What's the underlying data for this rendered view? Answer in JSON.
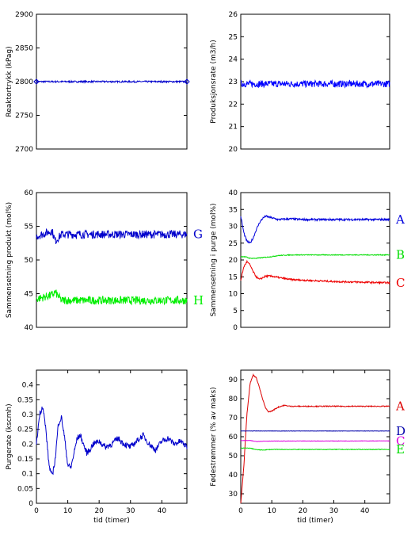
{
  "chart_data": [
    {
      "type": "line",
      "ylabel": "Reaktortrykk (kPag)",
      "xlabel": "",
      "xlim": [
        0,
        48
      ],
      "ylim": [
        2700,
        2900
      ],
      "yticks": [
        2700,
        2750,
        2800,
        2850,
        2900
      ],
      "xticks": [],
      "series": [
        {
          "label": "",
          "color": "#0000cc",
          "base": 2800,
          "noise": 1.2,
          "marker": "diamond",
          "x": [
            0,
            48
          ],
          "values": [
            2800,
            2800
          ]
        }
      ]
    },
    {
      "type": "line",
      "ylabel": "Produksjonsrate (m3/h)",
      "xlabel": "",
      "xlim": [
        0,
        48
      ],
      "ylim": [
        20,
        26
      ],
      "yticks": [
        20,
        21,
        22,
        23,
        24,
        25,
        26
      ],
      "xticks": [],
      "series": [
        {
          "label": "",
          "color": "#0000ff",
          "base": 22.9,
          "noise": 0.15,
          "x": [
            0,
            48
          ],
          "values": [
            22.9,
            22.9
          ]
        }
      ]
    },
    {
      "type": "line",
      "ylabel": "Sammensetning produkt (mol%)",
      "xlabel": "",
      "xlim": [
        0,
        48
      ],
      "ylim": [
        40,
        60
      ],
      "yticks": [
        40,
        45,
        50,
        55,
        60
      ],
      "xticks": [],
      "series": [
        {
          "label": "G",
          "color": "#0000cc",
          "base": 53.8,
          "noise": 0.6,
          "x": [
            0,
            5,
            6,
            8,
            48
          ],
          "values": [
            53.5,
            54.3,
            52.8,
            53.8,
            53.8
          ]
        },
        {
          "label": "H",
          "color": "#00ee00",
          "base": 44.0,
          "noise": 0.6,
          "x": [
            0,
            5,
            6,
            8,
            48
          ],
          "values": [
            44.2,
            44.8,
            45.2,
            44.0,
            44.0
          ]
        }
      ]
    },
    {
      "type": "line",
      "ylabel": "Sammensetning i purge (mol%)",
      "xlabel": "",
      "xlim": [
        0,
        48
      ],
      "ylim": [
        0,
        40
      ],
      "yticks": [
        0,
        5,
        10,
        15,
        20,
        25,
        30,
        35,
        40
      ],
      "xticks": [],
      "series": [
        {
          "label": "A",
          "color": "#0000dd",
          "base": 0,
          "noise": 0.3,
          "x": [
            0,
            1,
            2,
            3,
            4,
            5,
            6,
            7,
            8,
            10,
            12,
            16,
            20,
            48
          ],
          "values": [
            33,
            28,
            25.5,
            25,
            26.5,
            29,
            31,
            32.3,
            33,
            32.5,
            32,
            32.2,
            32,
            32
          ]
        },
        {
          "label": "B",
          "color": "#00dd00",
          "base": 0,
          "noise": 0.12,
          "x": [
            0,
            1,
            2,
            3,
            5,
            8,
            10,
            12,
            16,
            20,
            48
          ],
          "values": [
            21,
            21,
            20.8,
            20.5,
            20.5,
            20.8,
            21,
            21.3,
            21.5,
            21.5,
            21.5
          ]
        },
        {
          "label": "C",
          "color": "#ee0000",
          "base": 0,
          "noise": 0.25,
          "x": [
            0,
            1,
            2,
            3,
            4,
            5,
            6,
            8,
            10,
            12,
            16,
            20,
            30,
            48
          ],
          "values": [
            14,
            18,
            19.5,
            18.5,
            16.5,
            15,
            14.2,
            15.2,
            15.2,
            14.8,
            14.2,
            14,
            13.6,
            13.2
          ]
        }
      ]
    },
    {
      "type": "line",
      "ylabel": "Purgerate (kscmh)",
      "xlabel": "tid (timer)",
      "xlim": [
        0,
        48
      ],
      "ylim": [
        0,
        0.45
      ],
      "yticks": [
        0,
        0.05,
        0.1,
        0.15,
        0.2,
        0.25,
        0.3,
        0.35,
        0.4
      ],
      "ytick_labels": [
        "0",
        "0.05",
        "0.1",
        "0.15",
        "0.2",
        "0.25",
        "0.3",
        "0.35",
        "0.4"
      ],
      "xticks": [
        0,
        10,
        20,
        30,
        40
      ],
      "series": [
        {
          "label": "",
          "color": "#0000cc",
          "base": 0,
          "noise": 0.01,
          "x": [
            0,
            1,
            2,
            3,
            4,
            5,
            6,
            7,
            8,
            9,
            10,
            11,
            12,
            13,
            14,
            15,
            16,
            17,
            18,
            20,
            22,
            24,
            26,
            28,
            30,
            32,
            34,
            36,
            38,
            40,
            42,
            44,
            46,
            48
          ],
          "values": [
            0.2,
            0.3,
            0.33,
            0.25,
            0.13,
            0.09,
            0.15,
            0.27,
            0.29,
            0.22,
            0.13,
            0.12,
            0.17,
            0.22,
            0.23,
            0.2,
            0.17,
            0.18,
            0.2,
            0.21,
            0.19,
            0.2,
            0.22,
            0.2,
            0.19,
            0.21,
            0.23,
            0.2,
            0.18,
            0.21,
            0.22,
            0.2,
            0.21,
            0.19
          ]
        }
      ]
    },
    {
      "type": "line",
      "ylabel": "Fødestrømmer (% av maks)",
      "xlabel": "tid (timer)",
      "xlim": [
        0,
        48
      ],
      "ylim": [
        25,
        95
      ],
      "yticks": [
        30,
        40,
        50,
        60,
        70,
        80,
        90
      ],
      "xticks": [
        0,
        10,
        20,
        30,
        40
      ],
      "series": [
        {
          "label": "A",
          "color": "#dd0000",
          "base": 0,
          "noise": 0.25,
          "x": [
            0,
            1,
            2,
            3,
            4,
            5,
            6,
            7,
            8,
            9,
            10,
            12,
            14,
            16,
            20,
            48
          ],
          "values": [
            25,
            45,
            72,
            88,
            92.5,
            91,
            86,
            80,
            75,
            73,
            73.5,
            75.5,
            76.5,
            76,
            76,
            76
          ]
        },
        {
          "label": "D",
          "color": "#0000aa",
          "base": 0,
          "noise": 0.08,
          "x": [
            0,
            48
          ],
          "values": [
            63,
            63
          ]
        },
        {
          "label": "C",
          "color": "#dd00dd",
          "base": 0,
          "noise": 0.1,
          "x": [
            0,
            3,
            5,
            8,
            48
          ],
          "values": [
            58,
            58,
            57.5,
            57.7,
            57.8
          ]
        },
        {
          "label": "E",
          "color": "#00dd00",
          "base": 0,
          "noise": 0.15,
          "x": [
            0,
            3,
            5,
            7,
            10,
            48
          ],
          "values": [
            54,
            54,
            53.2,
            53,
            53.3,
            53.3
          ]
        }
      ]
    }
  ]
}
